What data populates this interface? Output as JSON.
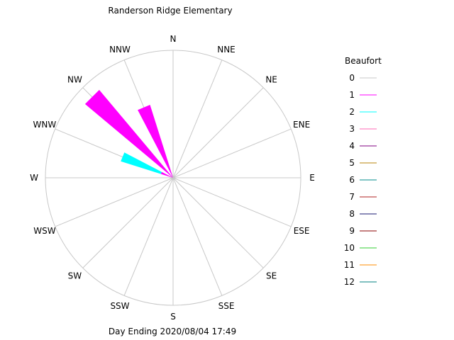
{
  "chart_data": {
    "type": "windrose",
    "title": "Randerson Ridge Elementary",
    "footer": "Day Ending 2020/08/04 17:49",
    "directions": [
      "N",
      "NNE",
      "NE",
      "ENE",
      "E",
      "ESE",
      "SE",
      "SSE",
      "S",
      "SSW",
      "SW",
      "WSW",
      "W",
      "WNW",
      "NW",
      "NNW"
    ],
    "r_max": 100,
    "legend": {
      "title": "Beaufort",
      "entries": [
        {
          "label": "0",
          "color": "#c8c8c8"
        },
        {
          "label": "1",
          "color": "#ff00ff"
        },
        {
          "label": "2",
          "color": "#00ffff"
        },
        {
          "label": "3",
          "color": "#ff69b4"
        },
        {
          "label": "4",
          "color": "#800080"
        },
        {
          "label": "5",
          "color": "#b8860b"
        },
        {
          "label": "6",
          "color": "#008b8b"
        },
        {
          "label": "7",
          "color": "#b22222"
        },
        {
          "label": "8",
          "color": "#191970"
        },
        {
          "label": "9",
          "color": "#8b0000"
        },
        {
          "label": "10",
          "color": "#32cd32"
        },
        {
          "label": "11",
          "color": "#ff8c00"
        },
        {
          "label": "12",
          "color": "#008080"
        }
      ]
    },
    "series": [
      {
        "beaufort": "1",
        "color": "#ff00ff",
        "values": {
          "WNW": 10,
          "NW": 90,
          "NNW": 60
        }
      },
      {
        "beaufort": "2",
        "color": "#00ffff",
        "values": {
          "WNW": 33
        }
      }
    ]
  }
}
